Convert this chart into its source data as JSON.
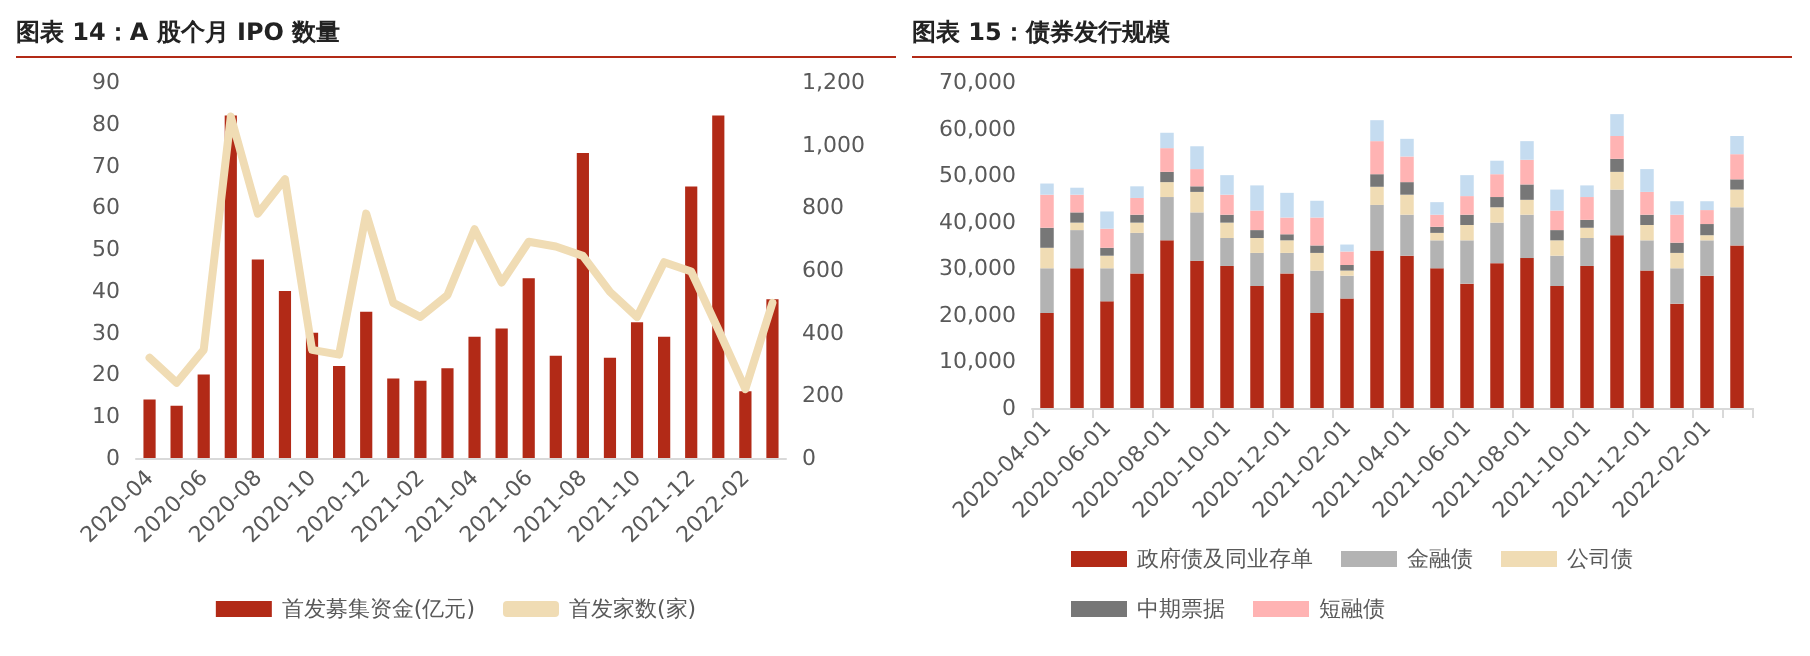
{
  "chart_data": [
    {
      "type": "bar",
      "title": "图表 14：A 股个月 IPO 数量",
      "categories": [
        "2020-04",
        null,
        "2020-06",
        null,
        "2020-08",
        null,
        "2020-10",
        null,
        "2020-12",
        null,
        "2021-02",
        null,
        "2021-04",
        null,
        "2021-06",
        null,
        "2021-08",
        null,
        "2021-10",
        null,
        "2021-12",
        null,
        "2022-02",
        null
      ],
      "series": [
        {
          "name": "首发募集资金(亿元)",
          "color": "#b22a17",
          "values": [
            14,
            12.5,
            20,
            82,
            47.5,
            40,
            30,
            22,
            35,
            19,
            18.5,
            21.5,
            29,
            31,
            43,
            24.5,
            73,
            24,
            32.5,
            29,
            65,
            82,
            16,
            38
          ]
        },
        {
          "name": "首发家数(家)",
          "type": "line",
          "axis": "y2",
          "color": "#f0dcb4",
          "values": [
            320,
            240,
            345,
            1090,
            780,
            890,
            345,
            330,
            780,
            495,
            450,
            520,
            730,
            560,
            690,
            675,
            645,
            530,
            450,
            625,
            595,
            410,
            220,
            495
          ]
        }
      ],
      "ylim": [
        0,
        90
      ],
      "yticks": [
        0,
        10,
        20,
        30,
        40,
        50,
        60,
        70,
        80,
        90
      ],
      "y2lim": [
        0,
        1200
      ],
      "y2ticks": [
        0,
        200,
        400,
        600,
        800,
        {
          "value": 1000,
          "label": "1,000"
        },
        {
          "value": 1200,
          "label": "1,200"
        }
      ],
      "marker": "none",
      "legend": "bottom",
      "grid": false
    },
    {
      "type": "bar",
      "title": "图表 15：债券发行规模",
      "stacked": true,
      "categories": [
        "2020-04-01",
        null,
        "2020-06-01",
        null,
        "2020-08-01",
        null,
        "2020-10-01",
        null,
        "2020-12-01",
        null,
        "2021-02-01",
        null,
        "2021-04-01",
        null,
        "2021-06-01",
        null,
        "2021-08-01",
        null,
        "2021-10-01",
        null,
        "2021-12-01",
        null,
        "2022-02-01",
        null
      ],
      "series": [
        {
          "name": "政府债及同业存单",
          "color": "#b22a17",
          "values": [
            20400,
            30000,
            22900,
            28900,
            36000,
            31600,
            30500,
            26200,
            28900,
            20400,
            23500,
            33800,
            32700,
            30000,
            26700,
            31100,
            32200,
            26200,
            30500,
            37100,
            29500,
            22400,
            28400,
            34900
          ]
        },
        {
          "name": "金融债",
          "color": "#b3b3b3",
          "values": [
            9600,
            8200,
            7100,
            8700,
            9300,
            10400,
            6000,
            7100,
            4400,
            9100,
            4900,
            9800,
            8800,
            6000,
            9300,
            8700,
            9300,
            6500,
            6000,
            9800,
            6500,
            7600,
            7600,
            8200
          ]
        },
        {
          "name": "公司债",
          "color": "#f0dcb4",
          "values": [
            4400,
            1600,
            2700,
            2200,
            3200,
            4400,
            3300,
            3200,
            2700,
            3800,
            1100,
            3900,
            4300,
            1600,
            3300,
            3300,
            3200,
            3300,
            2200,
            3800,
            3300,
            3300,
            1100,
            3800
          ]
        },
        {
          "name": "中期票据",
          "color": "#777777",
          "values": [
            4300,
            2200,
            1700,
            1700,
            2200,
            1200,
            1700,
            1700,
            1300,
            1600,
            1200,
            2700,
            2700,
            1300,
            2200,
            2200,
            3300,
            2200,
            1700,
            2800,
            2200,
            2200,
            2400,
            2200
          ]
        },
        {
          "name": "短融债",
          "color": "#ffb3b3",
          "values": [
            7100,
            3800,
            4100,
            3600,
            5100,
            3700,
            4300,
            4200,
            3600,
            6000,
            2900,
            7100,
            5500,
            2600,
            4000,
            4900,
            5300,
            4200,
            4900,
            4900,
            4900,
            6000,
            3000,
            5400
          ]
        },
        {
          "color": "#c5dcf0",
          "values": [
            2400,
            1500,
            3700,
            2500,
            3300,
            4900,
            4200,
            5400,
            5300,
            3600,
            1500,
            4500,
            3800,
            2700,
            4500,
            2900,
            4000,
            4500,
            2500,
            4700,
            4900,
            2900,
            1900,
            3900
          ]
        }
      ],
      "ylim": [
        0,
        70000
      ],
      "yticks": [
        0,
        {
          "value": 10000,
          "label": "10,000"
        },
        {
          "value": 20000,
          "label": "20,000"
        },
        {
          "value": 30000,
          "label": "30,000"
        },
        {
          "value": 40000,
          "label": "40,000"
        },
        {
          "value": 50000,
          "label": "50,000"
        },
        {
          "value": 60000,
          "label": "60,000"
        },
        {
          "value": 70000,
          "label": "70,000"
        }
      ],
      "legend": "bottom",
      "grid": false
    }
  ]
}
